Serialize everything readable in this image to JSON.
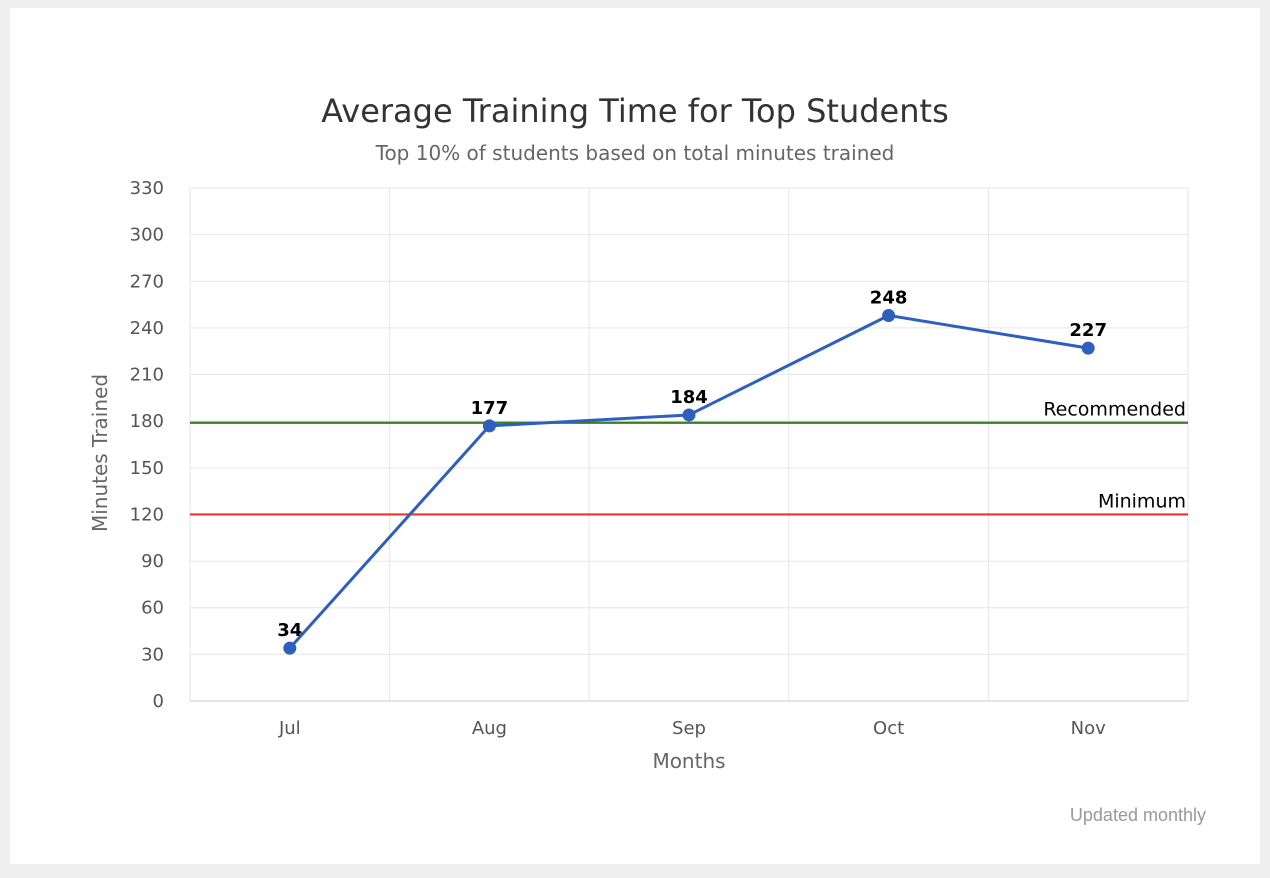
{
  "chart_data": {
    "type": "line",
    "title": "Average Training Time for Top Students",
    "subtitle": "Top 10% of students based on total minutes trained",
    "xlabel": "Months",
    "ylabel": "Minutes Trained",
    "categories": [
      "Jul",
      "Aug",
      "Sep",
      "Oct",
      "Nov"
    ],
    "series": [
      {
        "values": [
          34,
          177,
          184,
          248,
          227
        ],
        "color": "#2f5fbd"
      }
    ],
    "ylim": [
      0,
      330
    ],
    "yticks": [
      0,
      30,
      60,
      90,
      120,
      150,
      180,
      210,
      240,
      270,
      300,
      330
    ],
    "grid": true,
    "data_labels": true,
    "reference_lines": [
      {
        "label": "Recommended",
        "value": 179,
        "color": "#3a7d22"
      },
      {
        "label": "Minimum",
        "value": 120,
        "color": "#e8372b"
      }
    ],
    "credits": "Updated monthly"
  }
}
